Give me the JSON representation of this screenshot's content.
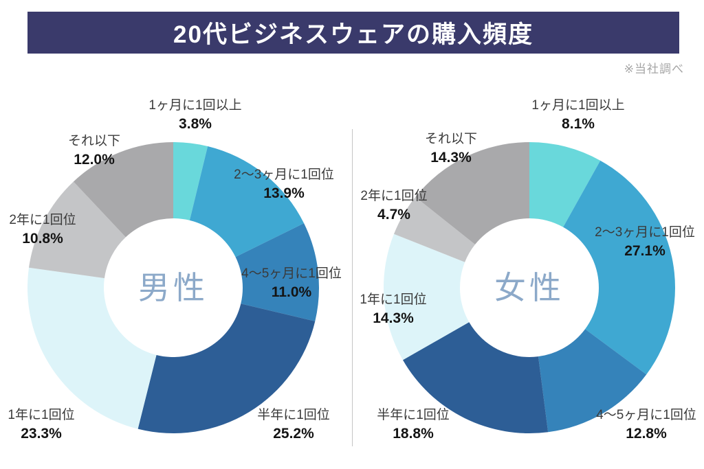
{
  "header": {
    "title": "20代ビジネスウェアの購入頻度"
  },
  "note": "※当社調べ",
  "chart_data": {
    "type": "pie",
    "subtype": "donut",
    "title": "20代ビジネスウェアの購入頻度",
    "source_note": "※当社調べ",
    "start_angle_deg": 0,
    "direction": "clockwise",
    "legend": "none",
    "unit": "%",
    "categories": [
      "1ヶ月に1回以上",
      "2～3ヶ月に1回位",
      "4～5ヶ月に1回位",
      "半年に1回位",
      "1年に1回位",
      "2年に1回位",
      "それ以下"
    ],
    "series": [
      {
        "name": "男性",
        "values": [
          3.8,
          13.9,
          11.0,
          25.2,
          23.3,
          10.8,
          12.0
        ]
      },
      {
        "name": "女性",
        "values": [
          8.1,
          27.1,
          12.8,
          18.8,
          14.3,
          4.7,
          14.3
        ]
      }
    ],
    "segment_colors": [
      "#69D8DB",
      "#3FA8D2",
      "#3583BA",
      "#2D5E96",
      "#DDF4F9",
      "#C4C5C7",
      "#A9A9AB"
    ]
  },
  "colors": {
    "banner_bg": "#3A3A6B",
    "banner_text": "#FFFFFF",
    "note_text": "#A5A5A5",
    "divider": "#C5C5C5",
    "center_label": "#8CA9C9",
    "category_text": "#3A3A3A",
    "value_text": "#141414",
    "background": "#FFFFFF"
  }
}
